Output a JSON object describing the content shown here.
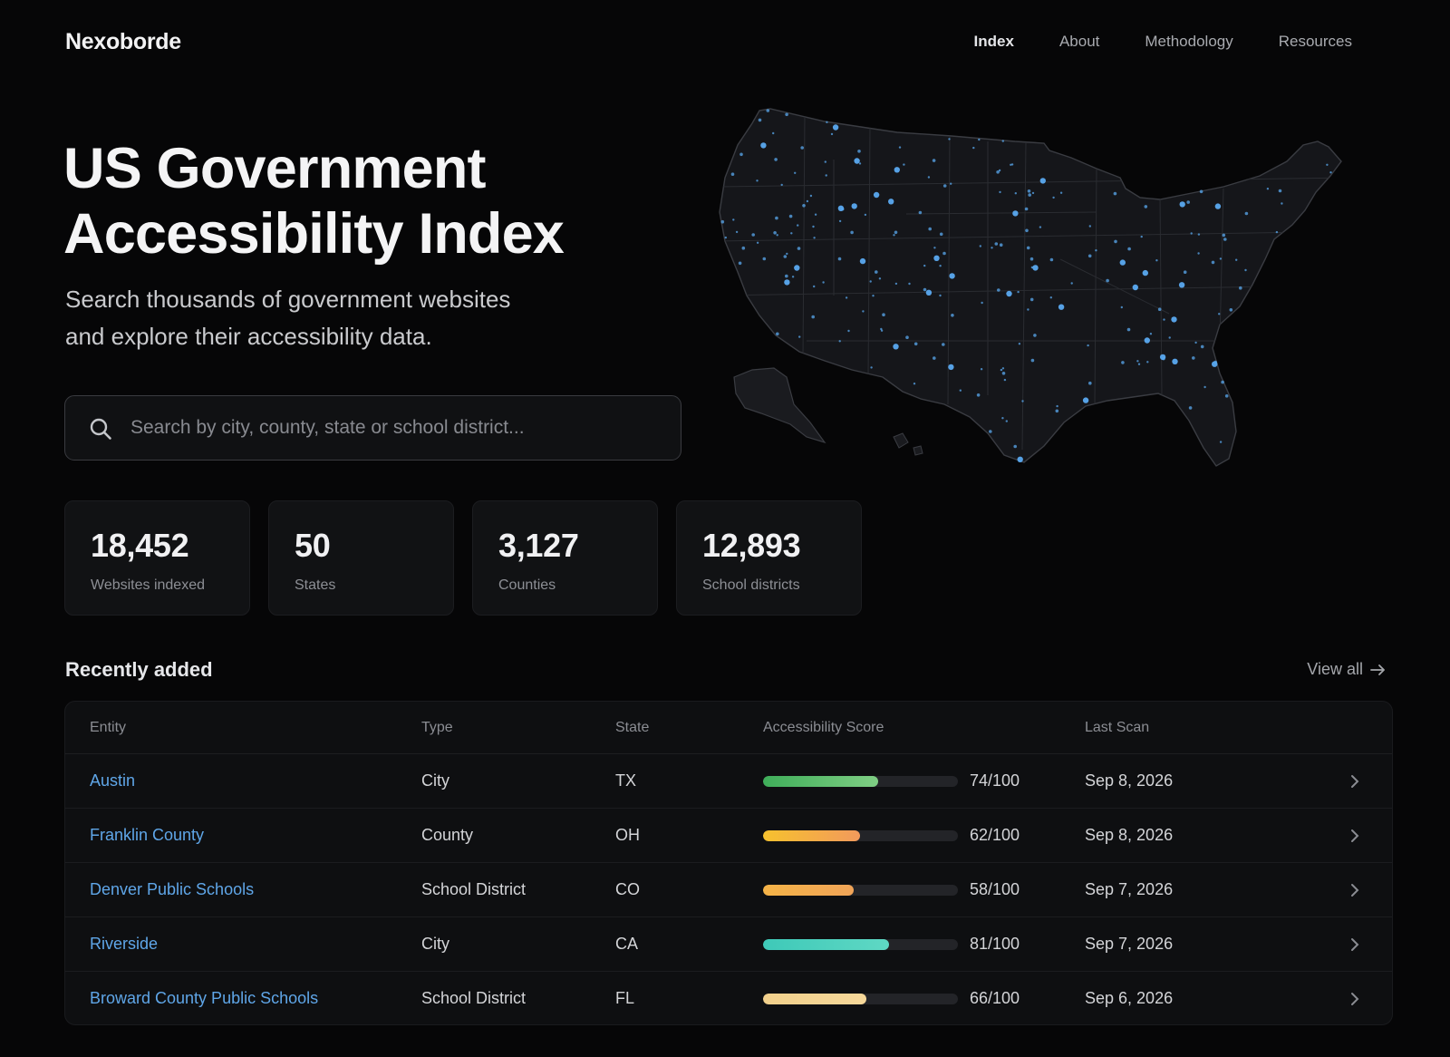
{
  "brand": "Nexoborde",
  "nav": [
    {
      "label": "Index",
      "active": true
    },
    {
      "label": "About",
      "active": false
    },
    {
      "label": "Methodology",
      "active": false
    },
    {
      "label": "Resources",
      "active": false
    }
  ],
  "hero": {
    "title_line1": "US Government",
    "title_line2": "Accessibility Index",
    "subtitle_line1": "Search thousands of government websites",
    "subtitle_line2": "and explore their accessibility data."
  },
  "search": {
    "placeholder": "Search by city, county, state or school district..."
  },
  "stats": [
    {
      "value": "18,452",
      "label": "Websites indexed"
    },
    {
      "value": "50",
      "label": "States"
    },
    {
      "value": "3,127",
      "label": "Counties"
    },
    {
      "value": "12,893",
      "label": "School districts"
    }
  ],
  "recent": {
    "title": "Recently added",
    "view_all": "View all",
    "columns": [
      "Entity",
      "Type",
      "State",
      "Accessibility Score",
      "Last Scan"
    ],
    "rows": [
      {
        "entity": "Austin",
        "type": "City",
        "state": "TX",
        "score": 74,
        "score_text": "74/100",
        "last_scan": "Sep 8, 2026",
        "color_from": "#3fae5a",
        "color_to": "#7fce84"
      },
      {
        "entity": "Franklin County",
        "type": "County",
        "state": "OH",
        "score": 62,
        "score_text": "62/100",
        "last_scan": "Sep 8, 2026",
        "color_from": "#f6c12e",
        "color_to": "#f29a5c"
      },
      {
        "entity": "Denver Public Schools",
        "type": "School District",
        "state": "CO",
        "score": 58,
        "score_text": "58/100",
        "last_scan": "Sep 7, 2026",
        "color_from": "#f4b347",
        "color_to": "#f0a458"
      },
      {
        "entity": "Riverside",
        "type": "City",
        "state": "CA",
        "score": 81,
        "score_text": "81/100",
        "last_scan": "Sep 7, 2026",
        "color_from": "#3ec9b8",
        "color_to": "#5fd8c4"
      },
      {
        "entity": "Broward County Public Schools",
        "type": "School District",
        "state": "FL",
        "score": 66,
        "score_text": "66/100",
        "last_scan": "Sep 6, 2026",
        "color_from": "#f1d08c",
        "color_to": "#f6d89a"
      }
    ]
  },
  "colors": {
    "background": "#060607",
    "link": "#5fa6e8",
    "map_dot": "#5aa9f0"
  },
  "icons": {
    "search": "search-icon",
    "arrow": "arrow-right-icon",
    "chevron": "chevron-right-icon"
  }
}
